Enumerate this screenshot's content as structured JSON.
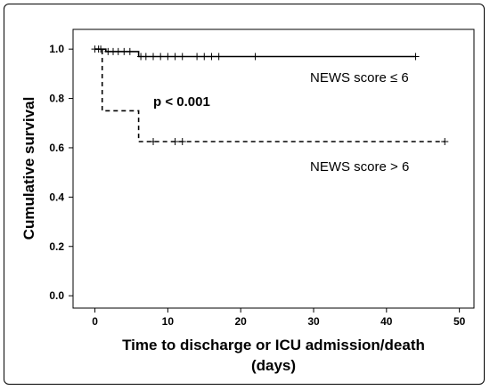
{
  "chart_data": {
    "type": "line",
    "title": "",
    "xlabel": "Time to discharge or ICU admission/death",
    "xlabel_line2": "(days)",
    "ylabel": "Cumulative survival",
    "xlim": [
      -3,
      52
    ],
    "ylim": [
      -0.05,
      1.08
    ],
    "x_ticks": [
      0,
      10,
      20,
      30,
      40,
      50
    ],
    "y_ticks": [
      0.0,
      0.2,
      0.4,
      0.6,
      0.8,
      1.0
    ],
    "y_tick_labels": [
      "0.0",
      "0.2",
      "0.4",
      "0.6",
      "0.8",
      "1.0"
    ],
    "grid": false,
    "annotation": "p < 0.001",
    "series": [
      {
        "name": "NEWS score ≤ 6",
        "style": "solid",
        "color": "#000000",
        "steps": [
          [
            0,
            1.0
          ],
          [
            1.5,
            1.0
          ],
          [
            1.5,
            0.99
          ],
          [
            6,
            0.99
          ],
          [
            6,
            0.97
          ],
          [
            44,
            0.97
          ]
        ],
        "censored": [
          [
            0,
            1.0
          ],
          [
            0.8,
            1.0
          ],
          [
            1.8,
            0.99
          ],
          [
            2.5,
            0.99
          ],
          [
            3.2,
            0.99
          ],
          [
            4,
            0.99
          ],
          [
            4.8,
            0.99
          ],
          [
            6.3,
            0.97
          ],
          [
            7,
            0.97
          ],
          [
            8,
            0.97
          ],
          [
            9,
            0.97
          ],
          [
            10,
            0.97
          ],
          [
            11,
            0.97
          ],
          [
            12,
            0.97
          ],
          [
            14,
            0.97
          ],
          [
            15,
            0.97
          ],
          [
            16,
            0.97
          ],
          [
            17,
            0.97
          ],
          [
            22,
            0.97
          ],
          [
            44,
            0.97
          ]
        ]
      },
      {
        "name": "NEWS score > 6",
        "style": "dashed",
        "color": "#000000",
        "steps": [
          [
            0,
            1.0
          ],
          [
            1,
            1.0
          ],
          [
            1,
            0.75
          ],
          [
            6,
            0.75
          ],
          [
            6,
            0.625
          ],
          [
            48,
            0.625
          ]
        ],
        "censored": [
          [
            0.5,
            1.0
          ],
          [
            8,
            0.625
          ],
          [
            11,
            0.625
          ],
          [
            12,
            0.625
          ],
          [
            48,
            0.625
          ]
        ]
      }
    ]
  }
}
